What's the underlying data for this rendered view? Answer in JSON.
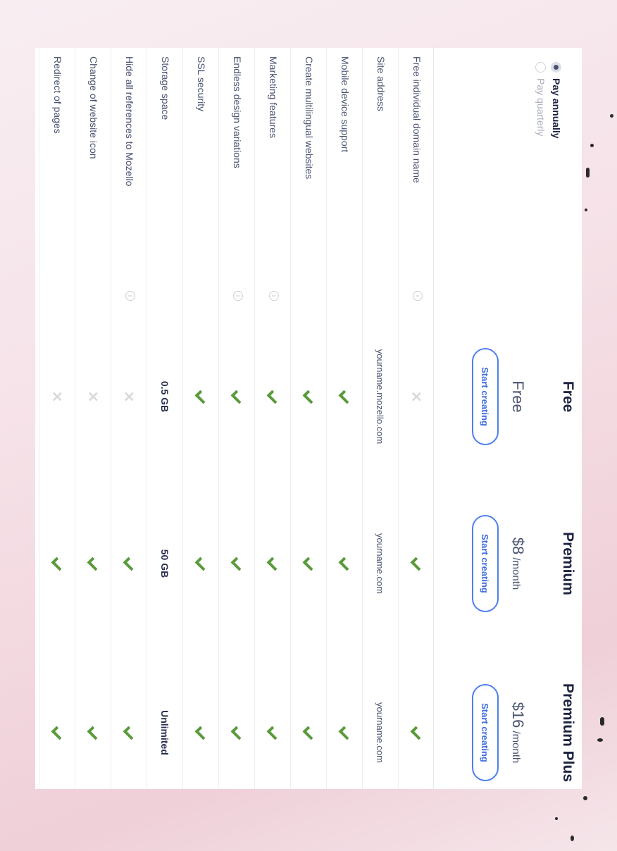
{
  "billing": {
    "options": [
      {
        "label": "Pay annually",
        "selected": true
      },
      {
        "label": "Pay quarterly",
        "selected": false
      }
    ]
  },
  "plans": [
    {
      "name": "Free",
      "price": "Free",
      "period": "",
      "button": "Start creating"
    },
    {
      "name": "Premium",
      "price": "$8",
      "period": " /month",
      "button": "Start creating"
    },
    {
      "name": "Premium Plus",
      "price": "$16",
      "period": " /month",
      "button": "Start creating"
    }
  ],
  "features": [
    {
      "label": "Free individual domain name",
      "info": true,
      "values": [
        "cross",
        "check",
        "check"
      ]
    },
    {
      "label": "Site address",
      "info": false,
      "values": [
        "yourname.mozello.com",
        "yourname.com",
        "yourname.com"
      ]
    },
    {
      "label": "Mobile device support",
      "info": false,
      "values": [
        "check",
        "check",
        "check"
      ]
    },
    {
      "label": "Create multilingual websites",
      "info": false,
      "values": [
        "check",
        "check",
        "check"
      ]
    },
    {
      "label": "Marketing features",
      "info": true,
      "values": [
        "check",
        "check",
        "check"
      ]
    },
    {
      "label": "Endless design variations",
      "info": true,
      "values": [
        "check",
        "check",
        "check"
      ]
    },
    {
      "label": "SSL security",
      "info": false,
      "values": [
        "check",
        "check",
        "check"
      ]
    },
    {
      "label": "Storage space",
      "info": false,
      "bold": true,
      "values": [
        "0.5 GB",
        "50 GB",
        "Unlimited"
      ]
    },
    {
      "label": "Hide all references to Mozello",
      "info": true,
      "values": [
        "cross",
        "check",
        "check"
      ]
    },
    {
      "label": "Change of website icon",
      "info": false,
      "values": [
        "cross",
        "check",
        "check"
      ]
    },
    {
      "label": "Redirect of pages",
      "info": false,
      "values": [
        "cross",
        "check",
        "check"
      ]
    }
  ],
  "colors": {
    "check": "#5a9a3a",
    "cross": "#d9d9d9",
    "button": "#4f7ef0",
    "heading": "#1c2240"
  }
}
